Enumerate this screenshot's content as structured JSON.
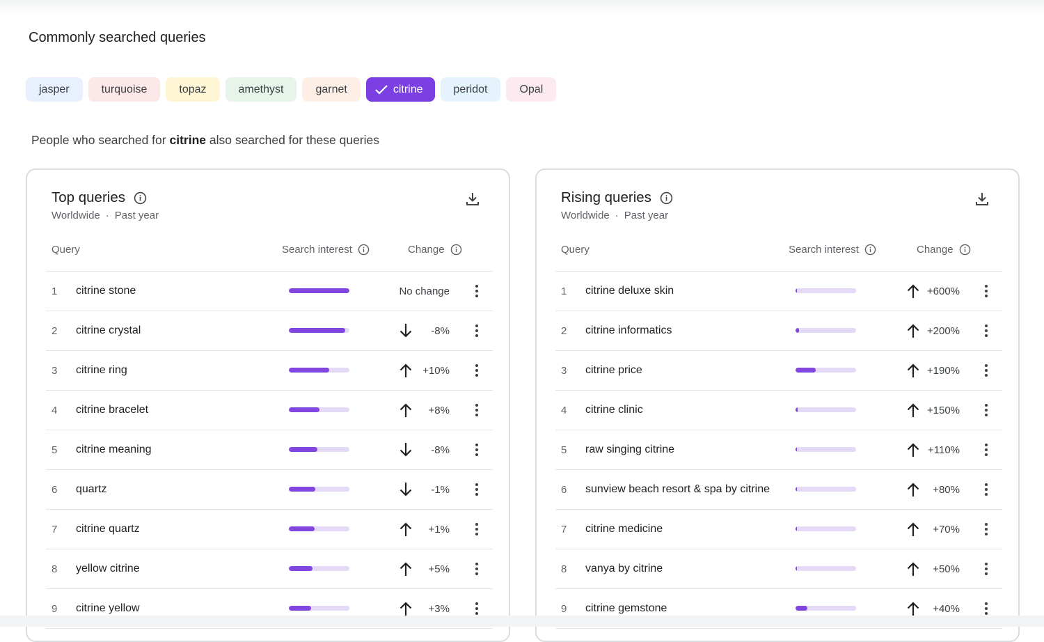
{
  "section_title": "Commonly searched queries",
  "chips": [
    {
      "label": "jasper",
      "bg": "#e8f0fe",
      "selected": false
    },
    {
      "label": "turquoise",
      "bg": "#fce8e8",
      "selected": false
    },
    {
      "label": "topaz",
      "bg": "#fef6d5",
      "selected": false
    },
    {
      "label": "amethyst",
      "bg": "#e6f4ea",
      "selected": false
    },
    {
      "label": "garnet",
      "bg": "#fdeee6",
      "selected": false
    },
    {
      "label": "citrine",
      "bg": "#7b3fe4",
      "selected": true
    },
    {
      "label": "peridot",
      "bg": "#e4f3fc",
      "selected": false
    },
    {
      "label": "Opal",
      "bg": "#fdeaf1",
      "selected": false
    }
  ],
  "subtitle": {
    "prefix": "People who searched for ",
    "term": "citrine",
    "suffix": " also searched for these queries"
  },
  "colors": {
    "accent": "#8246e0",
    "bar_bg": "#e4daf7"
  },
  "top": {
    "title": "Top queries",
    "region": "Worldwide",
    "sep": "·",
    "period": "Past year",
    "headers": {
      "query": "Query",
      "interest": "Search interest",
      "change": "Change"
    },
    "rows": [
      {
        "rank": "1",
        "query": "citrine stone",
        "interest": 1.0,
        "dir": "none",
        "change": "No change"
      },
      {
        "rank": "2",
        "query": "citrine crystal",
        "interest": 0.93,
        "dir": "down",
        "change": "-8%"
      },
      {
        "rank": "3",
        "query": "citrine ring",
        "interest": 0.67,
        "dir": "up",
        "change": "+10%"
      },
      {
        "rank": "4",
        "query": "citrine bracelet",
        "interest": 0.51,
        "dir": "up",
        "change": "+8%"
      },
      {
        "rank": "5",
        "query": "citrine meaning",
        "interest": 0.47,
        "dir": "down",
        "change": "-8%"
      },
      {
        "rank": "6",
        "query": "quartz",
        "interest": 0.44,
        "dir": "down",
        "change": "-1%"
      },
      {
        "rank": "7",
        "query": "citrine quartz",
        "interest": 0.43,
        "dir": "up",
        "change": "+1%"
      },
      {
        "rank": "8",
        "query": "yellow citrine",
        "interest": 0.39,
        "dir": "up",
        "change": "+5%"
      },
      {
        "rank": "9",
        "query": "citrine yellow",
        "interest": 0.37,
        "dir": "up",
        "change": "+3%"
      }
    ]
  },
  "rising": {
    "title": "Rising queries",
    "region": "Worldwide",
    "sep": "·",
    "period": "Past year",
    "headers": {
      "query": "Query",
      "interest": "Search interest",
      "change": "Change"
    },
    "rows": [
      {
        "rank": "1",
        "query": "citrine deluxe skin",
        "interest": 0.02,
        "dir": "up",
        "change": "+600%"
      },
      {
        "rank": "2",
        "query": "citrine informatics",
        "interest": 0.06,
        "dir": "up",
        "change": "+200%"
      },
      {
        "rank": "3",
        "query": "citrine price",
        "interest": 0.33,
        "dir": "up",
        "change": "+190%"
      },
      {
        "rank": "4",
        "query": "citrine clinic",
        "interest": 0.03,
        "dir": "up",
        "change": "+150%"
      },
      {
        "rank": "5",
        "query": "raw singing citrine",
        "interest": 0.02,
        "dir": "up",
        "change": "+110%"
      },
      {
        "rank": "6",
        "query": "sunview beach resort & spa by citrine",
        "interest": 0.02,
        "dir": "up",
        "change": "+80%"
      },
      {
        "rank": "7",
        "query": "citrine medicine",
        "interest": 0.02,
        "dir": "up",
        "change": "+70%"
      },
      {
        "rank": "8",
        "query": "vanya by citrine",
        "interest": 0.02,
        "dir": "up",
        "change": "+50%"
      },
      {
        "rank": "9",
        "query": "citrine gemstone",
        "interest": 0.2,
        "dir": "up",
        "change": "+40%"
      }
    ]
  }
}
